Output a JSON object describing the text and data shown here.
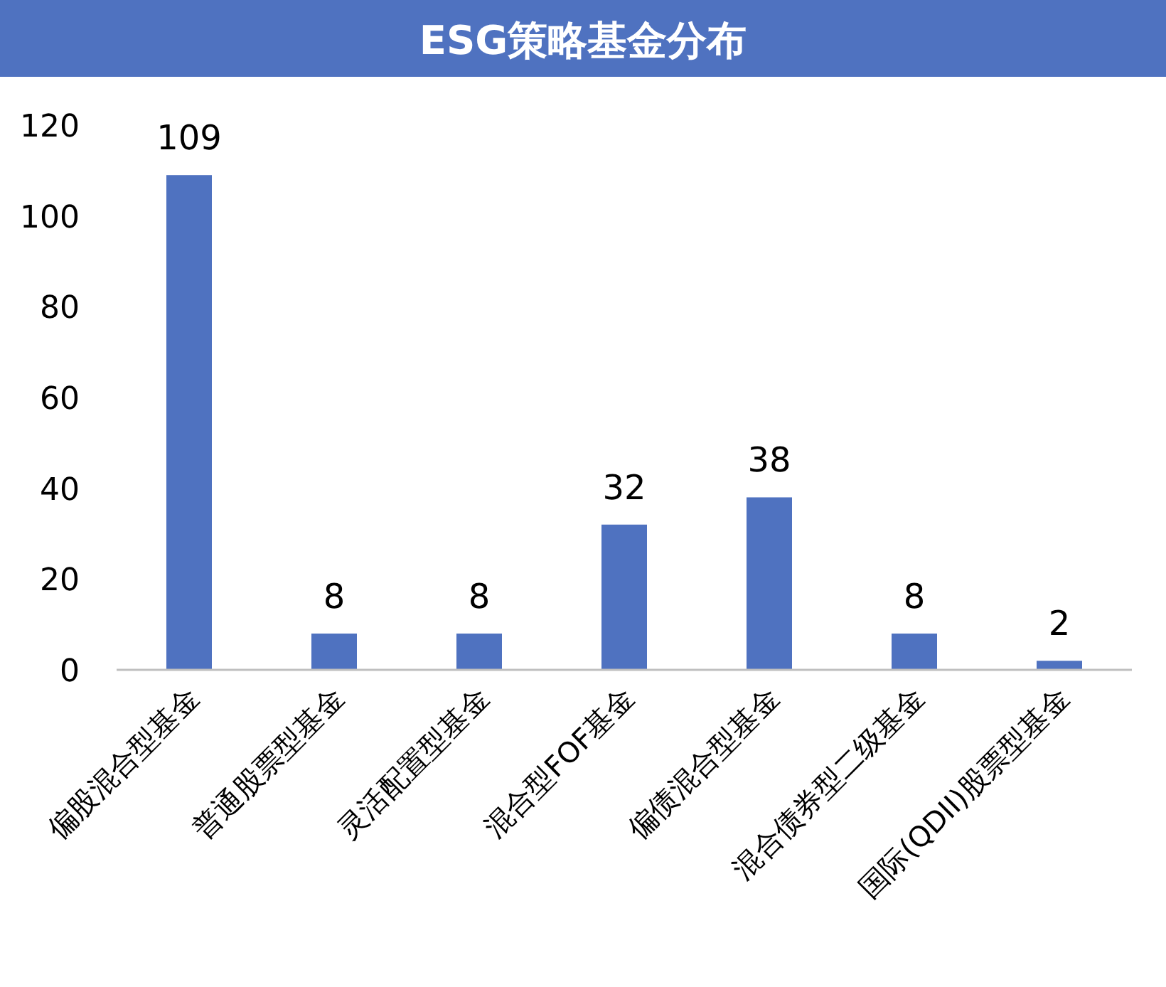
{
  "chart_data": {
    "type": "bar",
    "title": "ESG策略基金分布",
    "categories": [
      "偏股混合型基金",
      "普通股票型基金",
      "灵活配置型基金",
      "混合型FOF基金",
      "偏债混合型基金",
      "混合债券型二级基金",
      "国际(QDII)股票型基金"
    ],
    "values": [
      109,
      8,
      8,
      32,
      38,
      8,
      2
    ],
    "color": "#4f72c0",
    "ylim": [
      0,
      120
    ],
    "yticks": [
      0,
      20,
      40,
      60,
      80,
      100,
      120
    ],
    "data_labels": true
  }
}
